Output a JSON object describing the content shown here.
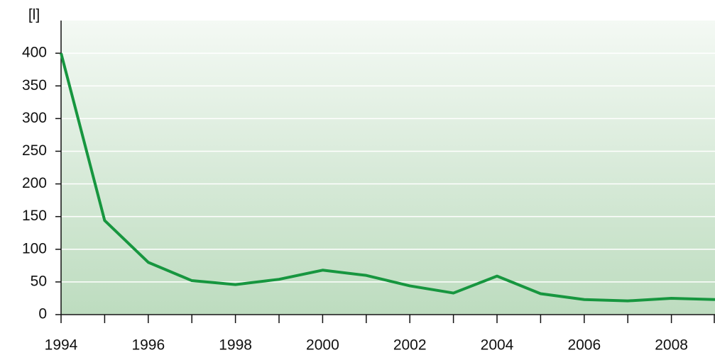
{
  "chart_data": {
    "type": "line",
    "y_label": "[l]",
    "x": [
      1994,
      1995,
      1996,
      1997,
      1998,
      1999,
      2000,
      2001,
      2002,
      2003,
      2004,
      2005,
      2006,
      2007,
      2008,
      2009
    ],
    "series": [
      {
        "color": "#17963f",
        "values": [
          400,
          144,
          80,
          52,
          46,
          54,
          68,
          60,
          44,
          33,
          59,
          32,
          23,
          21,
          25,
          23
        ]
      }
    ],
    "xlim": [
      1994,
      2009
    ],
    "ylim": [
      0,
      450
    ],
    "xticks": [
      1994,
      1996,
      1998,
      2000,
      2002,
      2004,
      2006,
      2008
    ],
    "xticks_minor": [
      1995,
      1997,
      1999,
      2001,
      2003,
      2005,
      2007,
      2009
    ],
    "yticks": [
      0,
      50,
      100,
      150,
      200,
      250,
      300,
      350,
      400
    ],
    "grid": true
  }
}
